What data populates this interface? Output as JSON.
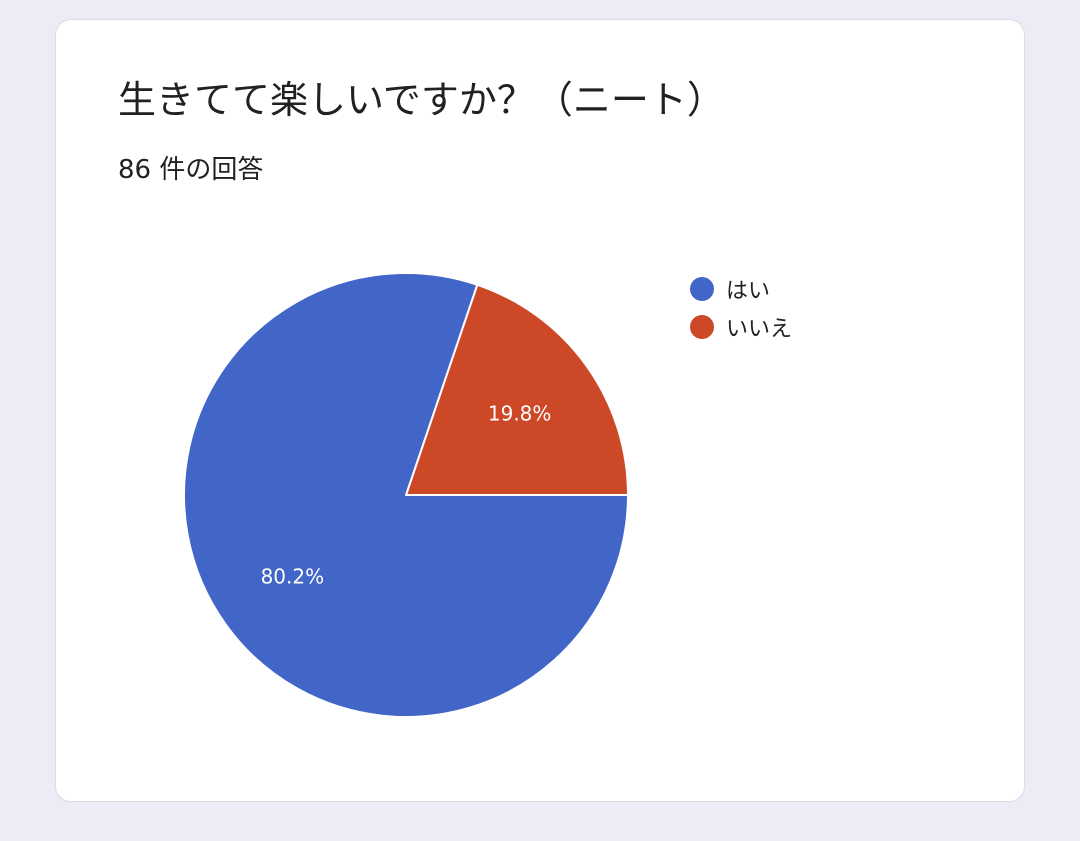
{
  "title": "生きてて楽しいですか？（ニート）",
  "response_count": "86 件の回答",
  "chart_data": {
    "type": "pie",
    "categories": [
      "はい",
      "いいえ"
    ],
    "values": [
      80.2,
      19.8
    ],
    "value_labels": [
      "80.2%",
      "19.8%"
    ],
    "colors": [
      "#4166c8",
      "#cc4827"
    ],
    "legend": "right",
    "start": "3 o'clock",
    "direction": "counterclockwise",
    "unit": "%"
  }
}
